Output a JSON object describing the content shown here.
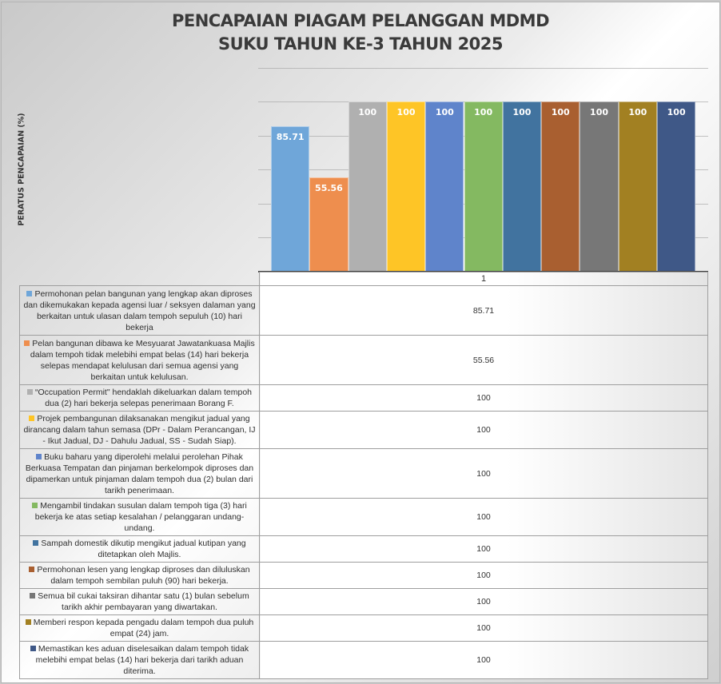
{
  "title": {
    "line1": "PENCAPAIAN PIAGAM PELANGGAN MDMD",
    "line2": "SUKU TAHUN KE-3 TAHUN 2025"
  },
  "axis": {
    "ylabel": "PERATUS PENCAPAIAN (%)",
    "category": "1"
  },
  "series": [
    {
      "label": "Permohonan pelan bangunan yang lengkap akan diproses dan dikemukakan kepada agensi luar / seksyen dalaman yang berkaitan untuk ulasan dalam tempoh sepuluh (10) hari bekerja",
      "value": "85.71",
      "color": "#6fa6d9"
    },
    {
      "label": "Pelan bangunan dibawa ke Mesyuarat Jawatankuasa Majlis dalam tempoh tidak melebihi empat belas (14) hari bekerja selepas mendapat kelulusan dari semua agensi yang berkaitan untuk kelulusan.",
      "value": "55.56",
      "color": "#ee8e4e"
    },
    {
      "label": "“Occupation Permit\" hendaklah dikeluarkan dalam tempoh dua (2) hari bekerja selepas penerimaan Borang F.",
      "value": "100",
      "color": "#b0b0b0"
    },
    {
      "label": "Projek pembangunan dilaksanakan mengikut jadual yang dirancang dalam tahun semasa (DPr - Dalam Perancangan, IJ - Ikut Jadual, DJ - Dahulu Jadual, SS - Sudah Siap).",
      "value": "100",
      "color": "#fec526"
    },
    {
      "label": "Buku baharu yang diperolehi melalui perolehan Pihak Berkuasa Tempatan dan pinjaman berkelompok diproses dan dipamerkan untuk pinjaman dalam tempoh dua (2) bulan dari tarikh penerimaan.",
      "value": "100",
      "color": "#5f84cb"
    },
    {
      "label": "Mengambil tindakan susulan dalam tempoh tiga (3) hari bekerja ke atas setiap kesalahan / pelanggaran undang-undang.",
      "value": "100",
      "color": "#84b961"
    },
    {
      "label": "Sampah domestik dikutip mengikut jadual kutipan yang ditetapkan oleh Majlis.",
      "value": "100",
      "color": "#41739f"
    },
    {
      "label": "Permohonan lesen yang lengkap diproses dan diluluskan dalam tempoh sembilan puluh (90) hari bekerja.",
      "value": "100",
      "color": "#a95f30"
    },
    {
      "label": "Semua bil cukai taksiran dihantar satu (1) bulan sebelum tarikh akhir pembayaran yang diwartakan.",
      "value": "100",
      "color": "#777777"
    },
    {
      "label": "Memberi respon kepada pengadu dalam tempoh dua puluh empat (24) jam.",
      "value": "100",
      "color": "#a28022"
    },
    {
      "label": "Memastikan kes aduan diselesaikan dalam tempoh tidak melebihi empat belas (14) hari bekerja dari tarikh aduan diterima.",
      "value": "100",
      "color": "#3f5887"
    }
  ],
  "chart_data": {
    "type": "bar",
    "title": "PENCAPAIAN PIAGAM PELANGGAN MDMD SUKU TAHUN KE-3 TAHUN 2025",
    "xlabel": "",
    "ylabel": "PERATUS PENCAPAIAN (%)",
    "categories": [
      "1"
    ],
    "ylim": [
      0,
      120
    ],
    "grid": true,
    "legend_position": "data-table-below",
    "series": [
      {
        "name": "Permohonan pelan bangunan yang lengkap akan diproses dan dikemukakan kepada agensi luar / seksyen dalaman yang berkaitan untuk ulasan dalam tempoh sepuluh (10) hari bekerja",
        "values": [
          85.71
        ]
      },
      {
        "name": "Pelan bangunan dibawa ke Mesyuarat Jawatankuasa Majlis dalam tempoh tidak melebihi empat belas (14) hari bekerja selepas mendapat kelulusan dari semua agensi yang berkaitan untuk kelulusan.",
        "values": [
          55.56
        ]
      },
      {
        "name": "“Occupation Permit\" hendaklah dikeluarkan dalam tempoh dua (2) hari bekerja selepas penerimaan Borang F.",
        "values": [
          100
        ]
      },
      {
        "name": "Projek pembangunan dilaksanakan mengikut jadual yang dirancang dalam tahun semasa (DPr - Dalam Perancangan, IJ - Ikut Jadual, DJ - Dahulu Jadual, SS - Sudah Siap).",
        "values": [
          100
        ]
      },
      {
        "name": "Buku baharu yang diperolehi melalui perolehan Pihak Berkuasa Tempatan dan pinjaman berkelompok diproses dan dipamerkan untuk pinjaman dalam tempoh dua (2) bulan dari tarikh penerimaan.",
        "values": [
          100
        ]
      },
      {
        "name": "Mengambil tindakan susulan dalam tempoh tiga (3) hari bekerja ke atas setiap kesalahan / pelanggaran undang-undang.",
        "values": [
          100
        ]
      },
      {
        "name": "Sampah domestik dikutip mengikut jadual kutipan yang ditetapkan oleh Majlis.",
        "values": [
          100
        ]
      },
      {
        "name": "Permohonan lesen yang lengkap diproses dan diluluskan dalam tempoh sembilan puluh (90) hari bekerja.",
        "values": [
          100
        ]
      },
      {
        "name": "Semua bil cukai taksiran dihantar satu (1) bulan sebelum tarikh akhir pembayaran yang diwartakan.",
        "values": [
          100
        ]
      },
      {
        "name": "Memberi respon kepada pengadu dalam tempoh dua puluh empat (24) jam.",
        "values": [
          100
        ]
      },
      {
        "name": "Memastikan kes aduan diselesaikan dalam tempoh tidak melebihi empat belas (14) hari bekerja dari tarikh aduan diterima.",
        "values": [
          100
        ]
      }
    ]
  }
}
